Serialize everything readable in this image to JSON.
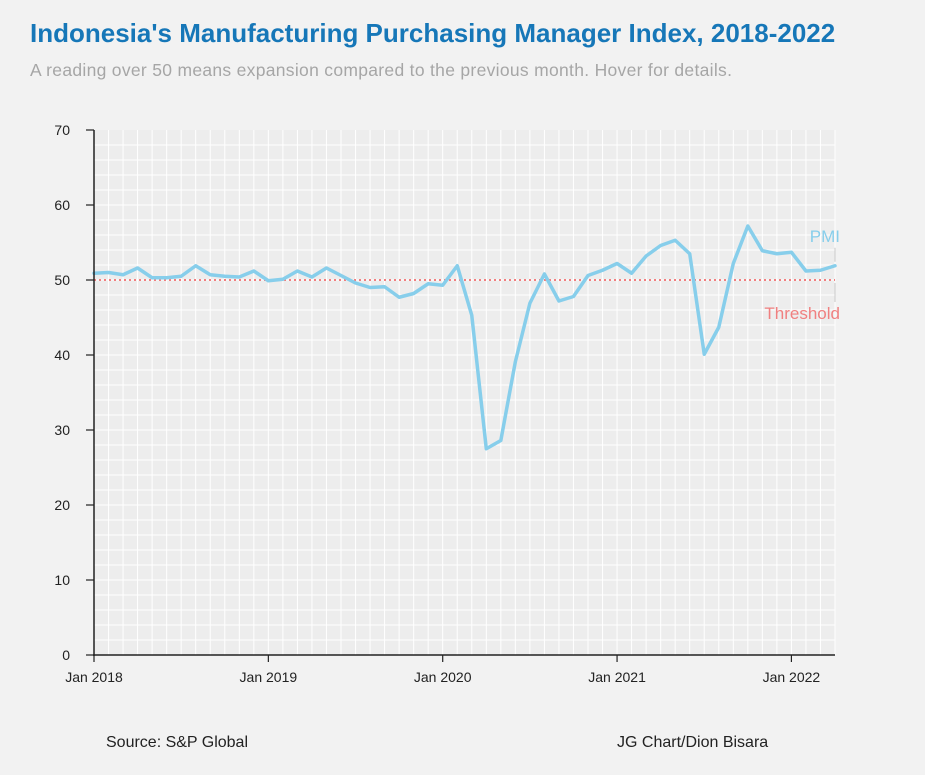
{
  "header": {
    "title": "Indonesia's Manufacturing Purchasing Manager Index, 2018-2022",
    "subtitle": "A reading over 50 means expansion compared to the previous month. Hover for details."
  },
  "footer": {
    "source": "Source: S&P Global",
    "credit": "JG Chart/Dion Bisara"
  },
  "chart_data": {
    "type": "line",
    "title": "Indonesia's Manufacturing Purchasing Manager Index, 2018-2022",
    "xlabel": "",
    "ylabel": "",
    "ylim": [
      0,
      70
    ],
    "yticks": [
      0,
      10,
      20,
      30,
      40,
      50,
      60,
      70
    ],
    "xticks": [
      {
        "label": "Jan 2018",
        "date": "2018-01"
      },
      {
        "label": "Jan 2019",
        "date": "2019-01"
      },
      {
        "label": "Jan 2020",
        "date": "2020-01"
      },
      {
        "label": "Jan 2021",
        "date": "2021-01"
      },
      {
        "label": "Jan 2022",
        "date": "2022-01"
      }
    ],
    "grid": true,
    "x": [
      "2018-01",
      "2018-02",
      "2018-03",
      "2018-04",
      "2018-05",
      "2018-06",
      "2018-07",
      "2018-08",
      "2018-09",
      "2018-10",
      "2018-11",
      "2018-12",
      "2019-01",
      "2019-02",
      "2019-03",
      "2019-04",
      "2019-05",
      "2019-06",
      "2019-07",
      "2019-08",
      "2019-09",
      "2019-10",
      "2019-11",
      "2019-12",
      "2020-01",
      "2020-02",
      "2020-03",
      "2020-04",
      "2020-05",
      "2020-06",
      "2020-07",
      "2020-08",
      "2020-09",
      "2020-10",
      "2020-11",
      "2020-12",
      "2021-01",
      "2021-02",
      "2021-03",
      "2021-04",
      "2021-05",
      "2021-06",
      "2021-07",
      "2021-08",
      "2021-09",
      "2021-10",
      "2021-11",
      "2021-12",
      "2022-01",
      "2022-02",
      "2022-03",
      "2022-04"
    ],
    "series": [
      {
        "name": "PMI",
        "color": "#87ceeb",
        "values": [
          50.9,
          51.0,
          50.7,
          51.6,
          50.3,
          50.3,
          50.5,
          51.9,
          50.7,
          50.5,
          50.4,
          51.2,
          49.9,
          50.1,
          51.2,
          50.4,
          51.6,
          50.6,
          49.6,
          49.0,
          49.1,
          47.7,
          48.2,
          49.5,
          49.3,
          51.9,
          45.3,
          27.5,
          28.6,
          39.1,
          46.9,
          50.8,
          47.2,
          47.8,
          50.6,
          51.3,
          52.2,
          50.9,
          53.2,
          54.6,
          55.3,
          53.5,
          40.1,
          43.7,
          52.2,
          57.2,
          53.9,
          53.5,
          53.7,
          51.2,
          51.3,
          51.9
        ]
      },
      {
        "name": "Threshold",
        "color": "#f08080",
        "style": "dotted",
        "values": [
          50,
          50,
          50,
          50,
          50,
          50,
          50,
          50,
          50,
          50,
          50,
          50,
          50,
          50,
          50,
          50,
          50,
          50,
          50,
          50,
          50,
          50,
          50,
          50,
          50,
          50,
          50,
          50,
          50,
          50,
          50,
          50,
          50,
          50,
          50,
          50,
          50,
          50,
          50,
          50,
          50,
          50,
          50,
          50,
          50,
          50,
          50,
          50,
          50,
          50,
          50,
          50
        ]
      }
    ]
  }
}
